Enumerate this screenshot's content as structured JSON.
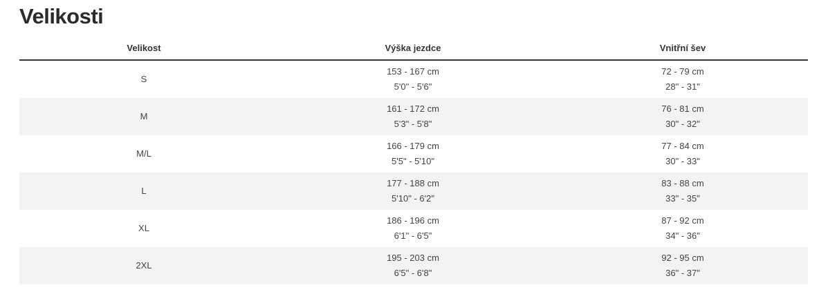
{
  "title": "Velikosti",
  "table": {
    "headers": [
      "Velikost",
      "Výška jezdce",
      "Vnitřní šev"
    ],
    "rows": [
      {
        "size": "S",
        "height_cm": "153 - 167 cm",
        "height_in": "5'0\" - 5'6\"",
        "inseam_cm": "72 - 79 cm",
        "inseam_in": "28\" - 31\""
      },
      {
        "size": "M",
        "height_cm": "161 - 172 cm",
        "height_in": "5'3\" - 5'8\"",
        "inseam_cm": "76 - 81 cm",
        "inseam_in": "30\" - 32\""
      },
      {
        "size": "M/L",
        "height_cm": "166 - 179 cm",
        "height_in": "5'5\" - 5'10\"",
        "inseam_cm": "77 - 84 cm",
        "inseam_in": "30\" - 33\""
      },
      {
        "size": "L",
        "height_cm": "177 - 188 cm",
        "height_in": "5'10\" - 6'2\"",
        "inseam_cm": "83 - 88 cm",
        "inseam_in": "33\" - 35\""
      },
      {
        "size": "XL",
        "height_cm": "186 - 196 cm",
        "height_in": "6'1\" - 6'5\"",
        "inseam_cm": "87 - 92 cm",
        "inseam_in": "34\" - 36\""
      },
      {
        "size": "2XL",
        "height_cm": "195 - 203 cm",
        "height_in": "6'5\" - 6'8\"",
        "inseam_cm": "92 - 95 cm",
        "inseam_in": "36\" - 37\""
      }
    ]
  },
  "colors": {
    "row_alt": "#f3f3f3",
    "header_border": "#333333",
    "text": "#444444"
  }
}
